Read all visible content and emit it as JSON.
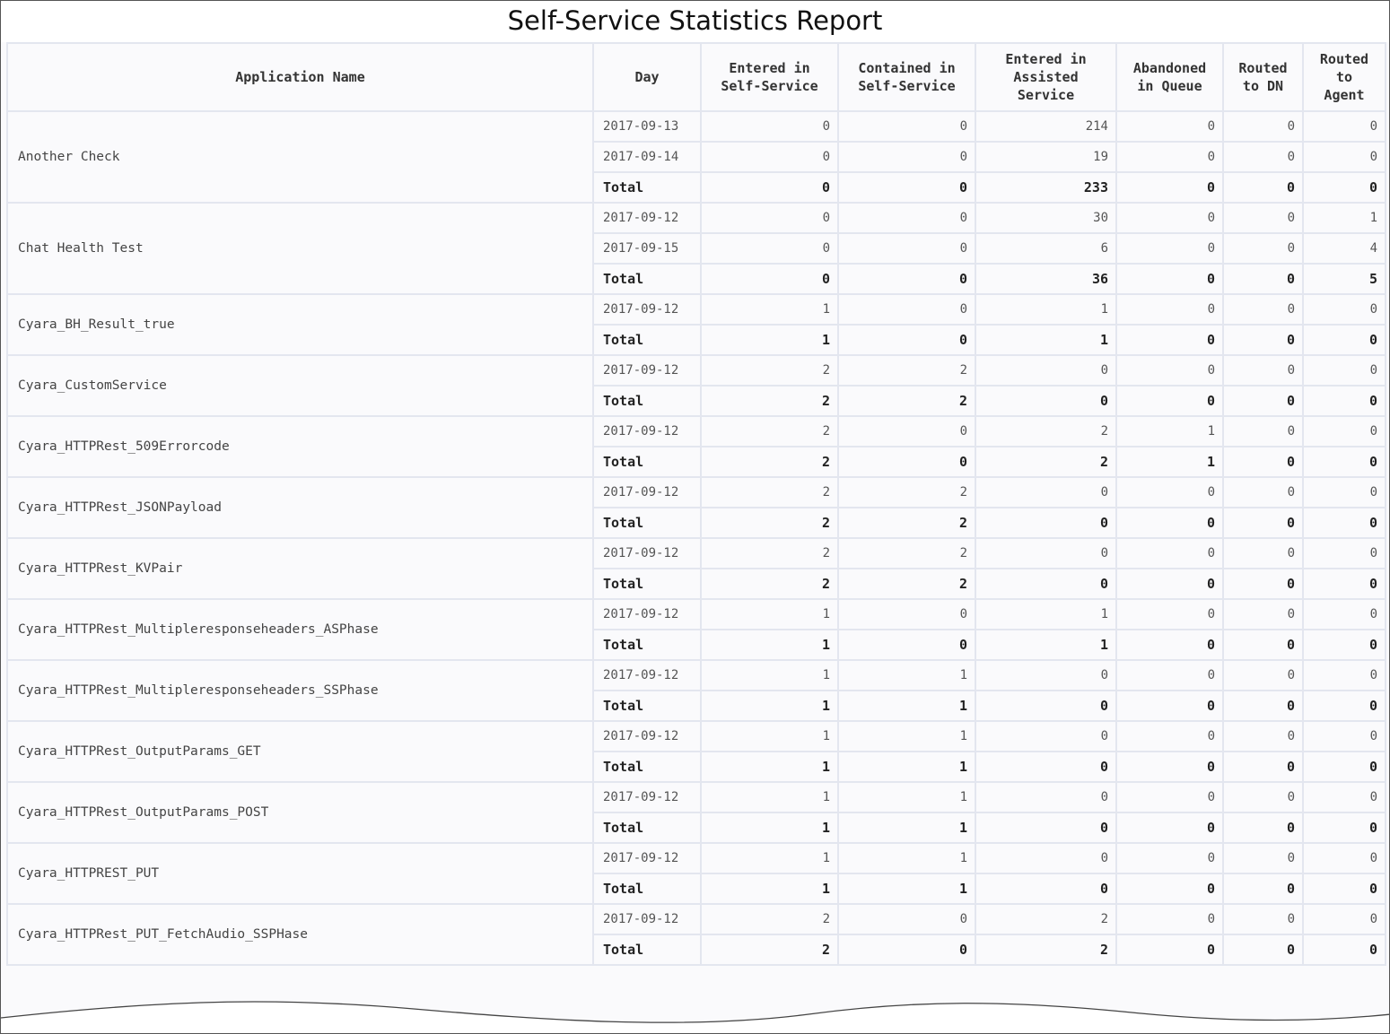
{
  "report": {
    "title": "Self-Service Statistics Report"
  },
  "columns": {
    "app": "Application Name",
    "day": "Day",
    "entered_self": [
      "Entered in",
      "Self-Service"
    ],
    "contained_self": [
      "Contained in",
      "Self-Service"
    ],
    "entered_assisted": [
      "Entered in",
      "Assisted",
      "Service"
    ],
    "abandoned": [
      "Abandoned",
      "in Queue"
    ],
    "routed_dn": [
      "Routed",
      "to DN"
    ],
    "routed_agent": [
      "Routed",
      "to",
      "Agent"
    ]
  },
  "total_label": "Total",
  "groups": [
    {
      "name": "Another Check",
      "rows": [
        {
          "day": "2017-09-13",
          "v": [
            "0",
            "0",
            "214",
            "0",
            "0",
            "0"
          ]
        },
        {
          "day": "2017-09-14",
          "v": [
            "0",
            "0",
            "19",
            "0",
            "0",
            "0"
          ]
        },
        {
          "day": "Total",
          "total": true,
          "v": [
            "0",
            "0",
            "233",
            "0",
            "0",
            "0"
          ]
        }
      ]
    },
    {
      "name": "Chat Health Test",
      "rows": [
        {
          "day": "2017-09-12",
          "v": [
            "0",
            "0",
            "30",
            "0",
            "0",
            "1"
          ]
        },
        {
          "day": "2017-09-15",
          "v": [
            "0",
            "0",
            "6",
            "0",
            "0",
            "4"
          ]
        },
        {
          "day": "Total",
          "total": true,
          "v": [
            "0",
            "0",
            "36",
            "0",
            "0",
            "5"
          ]
        }
      ]
    },
    {
      "name": "Cyara_BH_Result_true",
      "rows": [
        {
          "day": "2017-09-12",
          "v": [
            "1",
            "0",
            "1",
            "0",
            "0",
            "0"
          ]
        },
        {
          "day": "Total",
          "total": true,
          "v": [
            "1",
            "0",
            "1",
            "0",
            "0",
            "0"
          ]
        }
      ]
    },
    {
      "name": "Cyara_CustomService",
      "rows": [
        {
          "day": "2017-09-12",
          "v": [
            "2",
            "2",
            "0",
            "0",
            "0",
            "0"
          ]
        },
        {
          "day": "Total",
          "total": true,
          "v": [
            "2",
            "2",
            "0",
            "0",
            "0",
            "0"
          ]
        }
      ]
    },
    {
      "name": "Cyara_HTTPRest_509Errorcode",
      "rows": [
        {
          "day": "2017-09-12",
          "v": [
            "2",
            "0",
            "2",
            "1",
            "0",
            "0"
          ]
        },
        {
          "day": "Total",
          "total": true,
          "v": [
            "2",
            "0",
            "2",
            "1",
            "0",
            "0"
          ]
        }
      ]
    },
    {
      "name": "Cyara_HTTPRest_JSONPayload",
      "rows": [
        {
          "day": "2017-09-12",
          "v": [
            "2",
            "2",
            "0",
            "0",
            "0",
            "0"
          ]
        },
        {
          "day": "Total",
          "total": true,
          "v": [
            "2",
            "2",
            "0",
            "0",
            "0",
            "0"
          ]
        }
      ]
    },
    {
      "name": "Cyara_HTTPRest_KVPair",
      "rows": [
        {
          "day": "2017-09-12",
          "v": [
            "2",
            "2",
            "0",
            "0",
            "0",
            "0"
          ]
        },
        {
          "day": "Total",
          "total": true,
          "v": [
            "2",
            "2",
            "0",
            "0",
            "0",
            "0"
          ]
        }
      ]
    },
    {
      "name": "Cyara_HTTPRest_Multipleresponseheaders_ASPhase",
      "rows": [
        {
          "day": "2017-09-12",
          "v": [
            "1",
            "0",
            "1",
            "0",
            "0",
            "0"
          ]
        },
        {
          "day": "Total",
          "total": true,
          "v": [
            "1",
            "0",
            "1",
            "0",
            "0",
            "0"
          ]
        }
      ]
    },
    {
      "name": "Cyara_HTTPRest_Multipleresponseheaders_SSPhase",
      "rows": [
        {
          "day": "2017-09-12",
          "v": [
            "1",
            "1",
            "0",
            "0",
            "0",
            "0"
          ]
        },
        {
          "day": "Total",
          "total": true,
          "v": [
            "1",
            "1",
            "0",
            "0",
            "0",
            "0"
          ]
        }
      ]
    },
    {
      "name": "Cyara_HTTPRest_OutputParams_GET",
      "rows": [
        {
          "day": "2017-09-12",
          "v": [
            "1",
            "1",
            "0",
            "0",
            "0",
            "0"
          ]
        },
        {
          "day": "Total",
          "total": true,
          "v": [
            "1",
            "1",
            "0",
            "0",
            "0",
            "0"
          ]
        }
      ]
    },
    {
      "name": "Cyara_HTTPRest_OutputParams_POST",
      "rows": [
        {
          "day": "2017-09-12",
          "v": [
            "1",
            "1",
            "0",
            "0",
            "0",
            "0"
          ]
        },
        {
          "day": "Total",
          "total": true,
          "v": [
            "1",
            "1",
            "0",
            "0",
            "0",
            "0"
          ]
        }
      ]
    },
    {
      "name": "Cyara_HTTPREST_PUT",
      "rows": [
        {
          "day": "2017-09-12",
          "v": [
            "1",
            "1",
            "0",
            "0",
            "0",
            "0"
          ]
        },
        {
          "day": "Total",
          "total": true,
          "v": [
            "1",
            "1",
            "0",
            "0",
            "0",
            "0"
          ]
        }
      ]
    },
    {
      "name": "Cyara_HTTPRest_PUT_FetchAudio_SSPHase",
      "rows": [
        {
          "day": "2017-09-12",
          "v": [
            "2",
            "0",
            "2",
            "0",
            "0",
            "0"
          ]
        },
        {
          "day": "Total",
          "total": true,
          "v": [
            "2",
            "0",
            "2",
            "0",
            "0",
            "0"
          ]
        }
      ]
    }
  ]
}
